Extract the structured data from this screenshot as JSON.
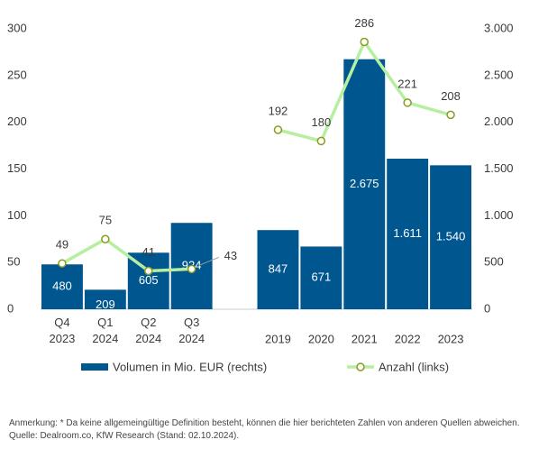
{
  "chart_data": {
    "type": "bar_line",
    "categories": [
      "Q4 2023",
      "Q1 2024",
      "Q2 2024",
      "Q3 2024",
      null,
      "2019",
      "2020",
      "2021",
      "2022",
      "2023"
    ],
    "series": [
      {
        "name": "Volumen in Mio. EUR (rechts)",
        "type": "bar",
        "axis": "y2",
        "color": "#00568f",
        "values": [
          480,
          209,
          605,
          924,
          null,
          847,
          671,
          2675,
          1611,
          1540
        ],
        "value_labels": [
          "480",
          "209",
          "605",
          "924",
          null,
          "847",
          "671",
          "2.675",
          "1.611",
          "1.540"
        ]
      },
      {
        "name": "Anzahl (links)",
        "type": "line",
        "axis": "y",
        "color": "#b5ef9f",
        "marker_color": "#8c9a1e",
        "values": [
          49,
          75,
          41,
          43,
          null,
          192,
          180,
          286,
          221,
          208
        ]
      }
    ],
    "ylim": [
      0,
      300
    ],
    "yticks": [
      0,
      50,
      100,
      150,
      200,
      250,
      300
    ],
    "y2lim": [
      0,
      3000
    ],
    "y2ticks": [
      0,
      500,
      {
        "value": 1000,
        "label": "1.000"
      },
      {
        "value": 1500,
        "label": "1.500"
      },
      {
        "value": 2000,
        "label": "2.000"
      },
      {
        "value": 2500,
        "label": "2.500"
      },
      {
        "value": 3000,
        "label": "3.000"
      }
    ],
    "note": "Anmerkung: * Da keine allgemeingültige Definition besteht, können die hier berichteten Zahlen von anderen Quellen abweichen.",
    "source": "Quelle: Dealroom.co, KfW Research (Stand: 02.10.2024)."
  }
}
